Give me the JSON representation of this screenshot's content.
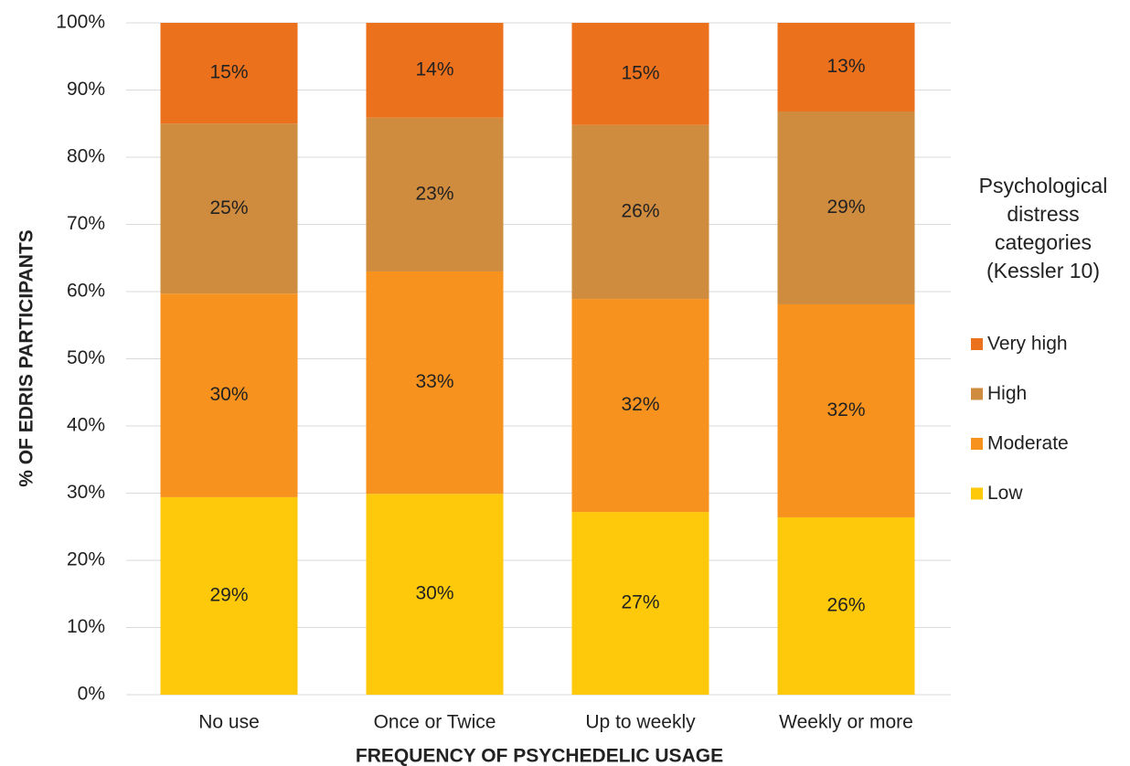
{
  "chart_data": {
    "type": "stacked_bar",
    "x_label": "FREQUENCY OF PSYCHEDELIC USAGE",
    "y_label": "% OF EDRIS PARTICIPANTS",
    "legend_title": "Psychological distress categories (Kessler 10)",
    "categories": [
      "No use",
      "Once or Twice",
      "Up to weekly",
      "Weekly or more"
    ],
    "series": [
      {
        "name": "Low",
        "color": "#fec80b",
        "values": [
          29.4,
          29.9,
          27.2,
          26.4
        ],
        "value_labels": [
          "29%",
          "30%",
          "27%",
          "26%"
        ]
      },
      {
        "name": "Moderate",
        "color": "#f7921e",
        "values": [
          30.3,
          33.1,
          31.7,
          31.7
        ],
        "value_labels": [
          "30%",
          "33%",
          "32%",
          "32%"
        ]
      },
      {
        "name": "High",
        "color": "#cf8b3e",
        "values": [
          25.3,
          22.9,
          25.9,
          28.7
        ],
        "value_labels": [
          "25%",
          "23%",
          "26%",
          "29%"
        ]
      },
      {
        "name": "Very high",
        "color": "#ec711c",
        "values": [
          15.0,
          14.1,
          15.2,
          13.2
        ],
        "value_labels": [
          "15%",
          "14%",
          "15%",
          "13%"
        ]
      }
    ],
    "ylim": [
      0,
      100
    ],
    "yticks": [
      {
        "value": 0,
        "label": "0%"
      },
      {
        "value": 10,
        "label": "10%"
      },
      {
        "value": 20,
        "label": "20%"
      },
      {
        "value": 30,
        "label": "30%"
      },
      {
        "value": 40,
        "label": "40%"
      },
      {
        "value": 50,
        "label": "50%"
      },
      {
        "value": 60,
        "label": "60%"
      },
      {
        "value": 70,
        "label": "70%"
      },
      {
        "value": 80,
        "label": "80%"
      },
      {
        "value": 90,
        "label": "90%"
      },
      {
        "value": 100,
        "label": "100%"
      }
    ],
    "grid": true,
    "legend": "right"
  }
}
